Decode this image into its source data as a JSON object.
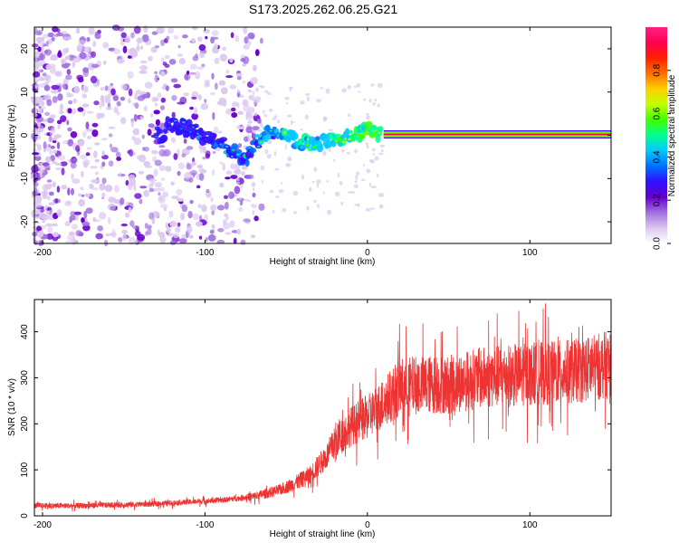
{
  "chart_data": [
    {
      "type": "heatmap",
      "title": "S173.2025.262.06.25.G21",
      "xlabel": "Height of straight line (km)",
      "ylabel": "Frequency (Hz)",
      "xlim": [
        -205,
        150
      ],
      "ylim": [
        -25,
        25
      ],
      "xticks": [
        -200,
        -100,
        0,
        100
      ],
      "yticks": [
        -20,
        -10,
        0,
        10,
        20
      ],
      "colorbar": {
        "label": "Normalized spectral amplitude",
        "range": [
          0,
          1
        ],
        "ticks": [
          "0.0",
          "0.2",
          "0.4",
          "0.6",
          "0.8"
        ],
        "colors": [
          "#ffffff",
          "#dcc8f0",
          "#a070e0",
          "#6600cc",
          "#3010ff",
          "#0070ff",
          "#00c8ff",
          "#00ff90",
          "#40ff00",
          "#c0ff00",
          "#ffd000",
          "#ff7000",
          "#ff2000",
          "#ff0050",
          "#ff2080"
        ]
      },
      "ridge": {
        "description_points_km_hz": [
          [
            -125,
            2.5
          ],
          [
            -110,
            1.5
          ],
          [
            -95,
            -1
          ],
          [
            -85,
            -3
          ],
          [
            -75,
            -6
          ],
          [
            -65,
            0
          ],
          [
            -55,
            1
          ],
          [
            -45,
            -1
          ],
          [
            -35,
            -2
          ],
          [
            -25,
            -1.5
          ],
          [
            -15,
            -0.5
          ],
          [
            -5,
            0.5
          ],
          [
            0,
            1.5
          ],
          [
            10,
            0.2
          ],
          [
            150,
            0.2
          ]
        ],
        "stable_band_start_km": 10,
        "stable_frequency_hz": 0.2
      }
    },
    {
      "type": "line",
      "xlabel": "Height of straight line (km)",
      "ylabel": "SNR (10 * v/v)",
      "xlim": [
        -205,
        150
      ],
      "ylim": [
        0,
        470
      ],
      "xticks": [
        -200,
        -100,
        0,
        100
      ],
      "yticks": [
        0,
        100,
        200,
        300,
        400
      ],
      "series": [
        {
          "name": "SNR",
          "color": "#ee3333",
          "trend_x": [
            -205,
            -180,
            -150,
            -130,
            -110,
            -90,
            -70,
            -55,
            -45,
            -35,
            -25,
            -20,
            -10,
            0,
            10,
            20,
            30,
            50,
            70,
            90,
            110,
            130,
            150
          ],
          "trend_y": [
            22,
            22,
            24,
            26,
            30,
            34,
            42,
            55,
            70,
            90,
            130,
            160,
            195,
            215,
            245,
            280,
            285,
            285,
            300,
            305,
            310,
            315,
            330
          ]
        }
      ]
    }
  ]
}
